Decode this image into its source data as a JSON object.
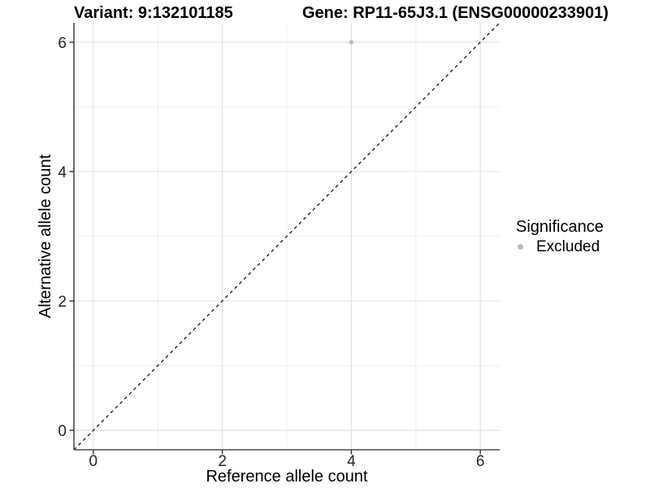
{
  "header": {
    "variant_title": "Variant: 9:132101185",
    "gene_title": "Gene: RP11-65J3.1 (ENSG00000233901)"
  },
  "legend": {
    "title": "Significance",
    "items": [
      {
        "label": "Excluded",
        "color": "#bcbcbc"
      }
    ]
  },
  "chart_data": {
    "type": "scatter",
    "xlabel": "Reference allele count",
    "ylabel": "Alternative allele count",
    "x_ticks": [
      0,
      2,
      4,
      6
    ],
    "y_ticks": [
      0,
      2,
      4,
      6
    ],
    "xlim": [
      -0.3,
      6.3
    ],
    "ylim": [
      -0.3,
      6.3
    ],
    "grid": {
      "major": true,
      "minor": true
    },
    "identity_line": {
      "slope": 1,
      "intercept": 0,
      "style": "dashed"
    },
    "series": [
      {
        "name": "Excluded",
        "color": "#bcbcbc",
        "points": [
          {
            "x": 4,
            "y": 6
          }
        ]
      }
    ],
    "legend_position": "right",
    "colors": {
      "grid_major": "#e3e3e3",
      "grid_minor": "#f0f0f0",
      "axis_line": "#4d4d4d",
      "tick_mark": "#333333",
      "tick_label": "#262626",
      "axis_title": "#000000",
      "abline": "#141414"
    }
  }
}
